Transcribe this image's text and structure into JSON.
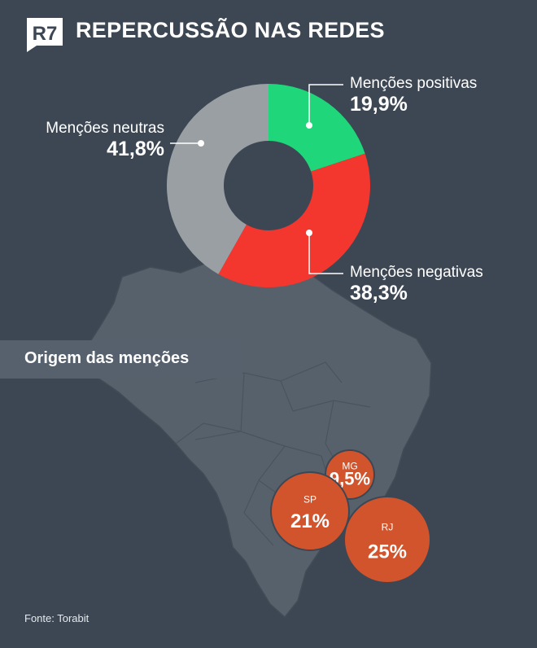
{
  "header": {
    "logo_text": "R7",
    "title": "REPERCUSSÃO NAS REDES"
  },
  "chart_data": [
    {
      "type": "pie",
      "donut": true,
      "slices": [
        {
          "label": "Menções positivas",
          "value": 19.9,
          "display": "19,9%",
          "color": "#1fd67a"
        },
        {
          "label": "Menções negativas",
          "value": 38.3,
          "display": "38,3%",
          "color": "#f3372f"
        },
        {
          "label": "Menções neutras",
          "value": 41.8,
          "display": "41,8%",
          "color": "#9a9fa3"
        }
      ]
    },
    {
      "type": "bubble-map",
      "title": "Origem das menções",
      "bubbles": [
        {
          "label": "MG",
          "value": 9.5,
          "display": "9,5%",
          "color": "#d2542c"
        },
        {
          "label": "SP",
          "value": 21,
          "display": "21%",
          "color": "#d2542c"
        },
        {
          "label": "RJ",
          "value": 25,
          "display": "25%",
          "color": "#d2542c"
        }
      ]
    }
  ],
  "footer": {
    "source": "Fonte: Torabit"
  }
}
